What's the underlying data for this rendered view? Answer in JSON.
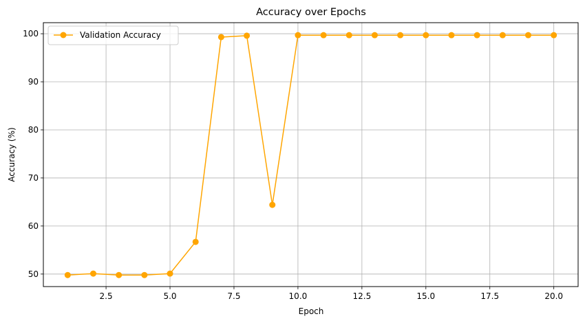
{
  "chart_data": {
    "type": "line",
    "title": "Accuracy over Epochs",
    "xlabel": "Epoch",
    "ylabel": "Accuracy (%)",
    "xlim": [
      0.05,
      20.95
    ],
    "ylim": [
      47.4,
      102.3
    ],
    "xticks": [
      2.5,
      5.0,
      7.5,
      10.0,
      12.5,
      15.0,
      17.5,
      20.0
    ],
    "xtick_labels": [
      "2.5",
      "5.0",
      "7.5",
      "10.0",
      "12.5",
      "15.0",
      "17.5",
      "20.0"
    ],
    "yticks": [
      50,
      60,
      70,
      80,
      90,
      100
    ],
    "ytick_labels": [
      "50",
      "60",
      "70",
      "80",
      "90",
      "100"
    ],
    "grid": true,
    "legend_position": "top-left",
    "series": [
      {
        "name": "Validation Accuracy",
        "color": "#ffa500",
        "marker": "circle",
        "x": [
          1,
          2,
          3,
          4,
          5,
          6,
          7,
          8,
          9,
          10,
          11,
          12,
          13,
          14,
          15,
          16,
          17,
          18,
          19,
          20
        ],
        "y": [
          49.8,
          50.1,
          49.8,
          49.8,
          50.1,
          56.7,
          99.3,
          99.6,
          64.4,
          99.7,
          99.7,
          99.7,
          99.7,
          99.7,
          99.7,
          99.7,
          99.7,
          99.7,
          99.7,
          99.7
        ]
      }
    ]
  }
}
